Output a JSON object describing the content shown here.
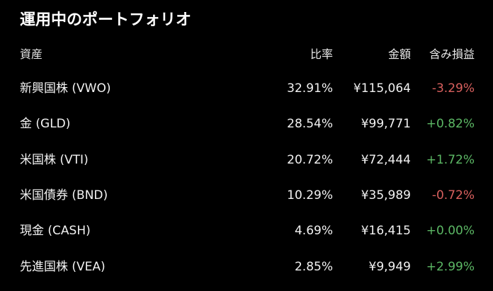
{
  "title": "運用中のポートフォリオ",
  "headers": {
    "asset": "資産",
    "ratio": "比率",
    "amount": "金額",
    "pnl": "含み損益"
  },
  "colors": {
    "negative": "#d9605e",
    "positive": "#5cb865",
    "background": "#000000"
  },
  "rows": [
    {
      "name": "新興国株 (VWO)",
      "ratio": "32.91%",
      "amount": "¥115,064",
      "pnl": "-3.29%"
    },
    {
      "name": "金 (GLD)",
      "ratio": "28.54%",
      "amount": "¥99,771",
      "pnl": "+0.82%"
    },
    {
      "name": "米国株 (VTI)",
      "ratio": "20.72%",
      "amount": "¥72,444",
      "pnl": "+1.72%"
    },
    {
      "name": "米国債券 (BND)",
      "ratio": "10.29%",
      "amount": "¥35,989",
      "pnl": "-0.72%"
    },
    {
      "name": "現金 (CASH)",
      "ratio": "4.69%",
      "amount": "¥16,415",
      "pnl": "+0.00%"
    },
    {
      "name": "先進国株 (VEA)",
      "ratio": "2.85%",
      "amount": "¥9,949",
      "pnl": "+2.99%"
    }
  ]
}
